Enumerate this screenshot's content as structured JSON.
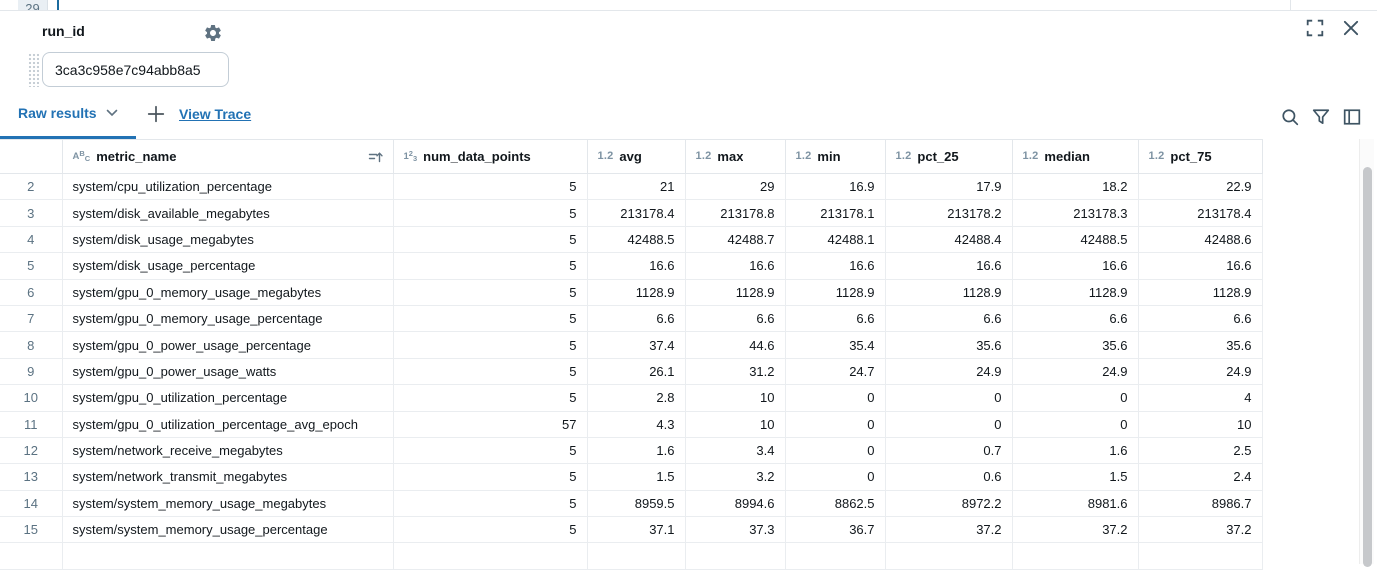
{
  "editor": {
    "visible_line_number": "29"
  },
  "widget": {
    "label": "run_id",
    "value": "3ca3c958e7c94abb8a5"
  },
  "toolbar": {
    "active_tab_label": "Raw results",
    "add_button_label": "+",
    "view_trace_label": "View Trace"
  },
  "icons": {
    "gear": "gear-icon",
    "maximize": "maximize-icon",
    "close": "close-icon",
    "chevron": "chevron-down-icon",
    "plus": "plus-icon",
    "search": "search-icon",
    "filter": "filter-icon",
    "columns_panel": "columns-panel-icon",
    "sort": "sort-ascending-icon",
    "string_type": "abc-type-icon",
    "integer_type": "123-type-icon",
    "decimal_type": "1.2-type-icon"
  },
  "colors": {
    "accent_blue": "#2272B4",
    "text": "#11171C",
    "muted_slate": "#5F7281",
    "row_number": "#5B7282",
    "type_icon": "#7E93A3",
    "border": "#E3E7EB",
    "scrollbar_thumb": "#C6C8CB"
  },
  "table": {
    "columns": [
      {
        "key": "row_index",
        "label": "",
        "type": "none"
      },
      {
        "key": "metric_name",
        "label": "metric_name",
        "type": "string",
        "sorted": "ascending"
      },
      {
        "key": "num_data_points",
        "label": "num_data_points",
        "type": "integer"
      },
      {
        "key": "avg",
        "label": "avg",
        "type": "decimal"
      },
      {
        "key": "max",
        "label": "max",
        "type": "decimal"
      },
      {
        "key": "min",
        "label": "min",
        "type": "decimal"
      },
      {
        "key": "pct_25",
        "label": "pct_25",
        "type": "decimal"
      },
      {
        "key": "median",
        "label": "median",
        "type": "decimal"
      },
      {
        "key": "pct_75",
        "label": "pct_75",
        "type": "decimal"
      }
    ],
    "rows": [
      {
        "num": "2",
        "metric_name": "system/cpu_utilization_percentage",
        "values": [
          "5",
          "21",
          "29",
          "16.9",
          "17.9",
          "18.2",
          "22.9"
        ]
      },
      {
        "num": "3",
        "metric_name": "system/disk_available_megabytes",
        "values": [
          "5",
          "213178.4",
          "213178.8",
          "213178.1",
          "213178.2",
          "213178.3",
          "213178.4"
        ]
      },
      {
        "num": "4",
        "metric_name": "system/disk_usage_megabytes",
        "values": [
          "5",
          "42488.5",
          "42488.7",
          "42488.1",
          "42488.4",
          "42488.5",
          "42488.6"
        ]
      },
      {
        "num": "5",
        "metric_name": "system/disk_usage_percentage",
        "values": [
          "5",
          "16.6",
          "16.6",
          "16.6",
          "16.6",
          "16.6",
          "16.6"
        ]
      },
      {
        "num": "6",
        "metric_name": "system/gpu_0_memory_usage_megabytes",
        "values": [
          "5",
          "1128.9",
          "1128.9",
          "1128.9",
          "1128.9",
          "1128.9",
          "1128.9"
        ]
      },
      {
        "num": "7",
        "metric_name": "system/gpu_0_memory_usage_percentage",
        "values": [
          "5",
          "6.6",
          "6.6",
          "6.6",
          "6.6",
          "6.6",
          "6.6"
        ]
      },
      {
        "num": "8",
        "metric_name": "system/gpu_0_power_usage_percentage",
        "values": [
          "5",
          "37.4",
          "44.6",
          "35.4",
          "35.6",
          "35.6",
          "35.6"
        ]
      },
      {
        "num": "9",
        "metric_name": "system/gpu_0_power_usage_watts",
        "values": [
          "5",
          "26.1",
          "31.2",
          "24.7",
          "24.9",
          "24.9",
          "24.9"
        ]
      },
      {
        "num": "10",
        "metric_name": "system/gpu_0_utilization_percentage",
        "values": [
          "5",
          "2.8",
          "10",
          "0",
          "0",
          "0",
          "4"
        ]
      },
      {
        "num": "11",
        "metric_name": "system/gpu_0_utilization_percentage_avg_epoch",
        "values": [
          "57",
          "4.3",
          "10",
          "0",
          "0",
          "0",
          "10"
        ]
      },
      {
        "num": "12",
        "metric_name": "system/network_receive_megabytes",
        "values": [
          "5",
          "1.6",
          "3.4",
          "0",
          "0.7",
          "1.6",
          "2.5"
        ]
      },
      {
        "num": "13",
        "metric_name": "system/network_transmit_megabytes",
        "values": [
          "5",
          "1.5",
          "3.2",
          "0",
          "0.6",
          "1.5",
          "2.4"
        ]
      },
      {
        "num": "14",
        "metric_name": "system/system_memory_usage_megabytes",
        "values": [
          "5",
          "8959.5",
          "8994.6",
          "8862.5",
          "8972.2",
          "8981.6",
          "8986.7"
        ]
      },
      {
        "num": "15",
        "metric_name": "system/system_memory_usage_percentage",
        "values": [
          "5",
          "37.1",
          "37.3",
          "36.7",
          "37.2",
          "37.2",
          "37.2"
        ]
      }
    ]
  }
}
